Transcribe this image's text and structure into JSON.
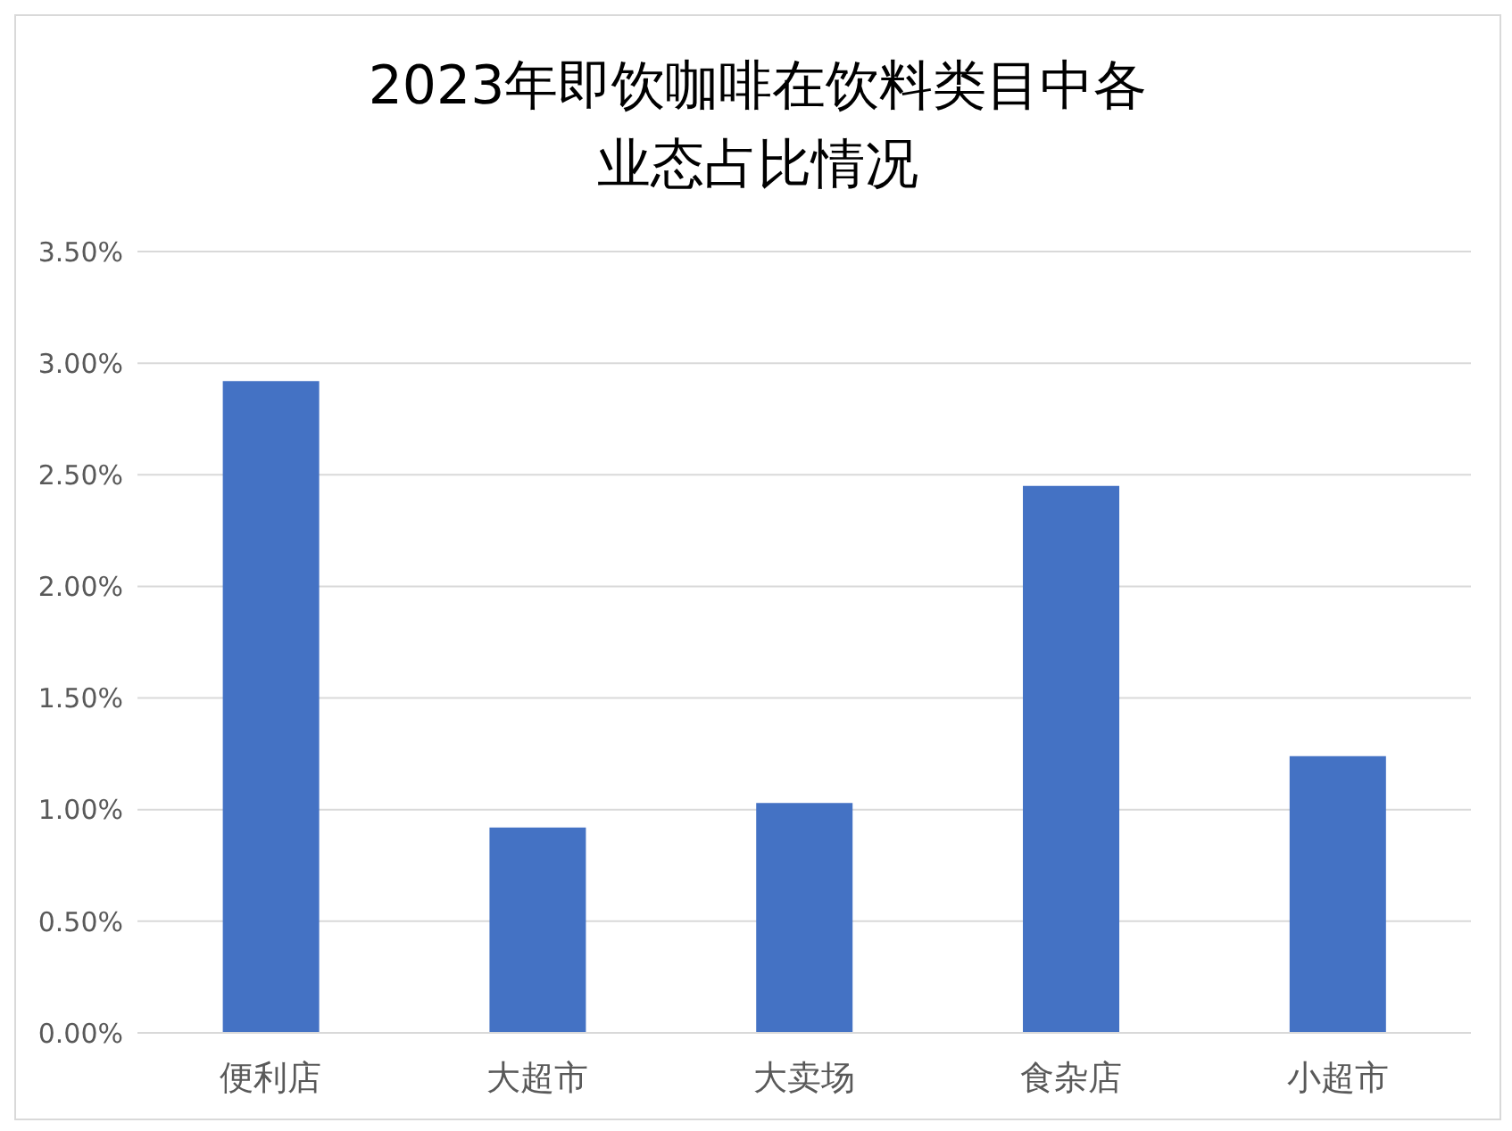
{
  "chart_data": {
    "type": "bar",
    "title": "2023年即饮咖啡在饮料类目中各业态占比情况",
    "categories": [
      "便利店",
      "大超市",
      "大卖场",
      "食杂店",
      "小超市"
    ],
    "values": [
      2.92,
      0.92,
      1.03,
      2.45,
      1.24
    ],
    "color": "#4472c4",
    "ylim": [
      0,
      3.5
    ],
    "yticks": [
      {
        "value": 0,
        "label": "0.00%"
      },
      {
        "value": 0.5,
        "label": "0.50%"
      },
      {
        "value": 1,
        "label": "1.00%"
      },
      {
        "value": 1.5,
        "label": "1.50%"
      },
      {
        "value": 2,
        "label": "2.00%"
      },
      {
        "value": 2.5,
        "label": "2.50%"
      },
      {
        "value": 3,
        "label": "3.00%"
      },
      {
        "value": 3.5,
        "label": "3.50%"
      }
    ],
    "grid": "y"
  }
}
